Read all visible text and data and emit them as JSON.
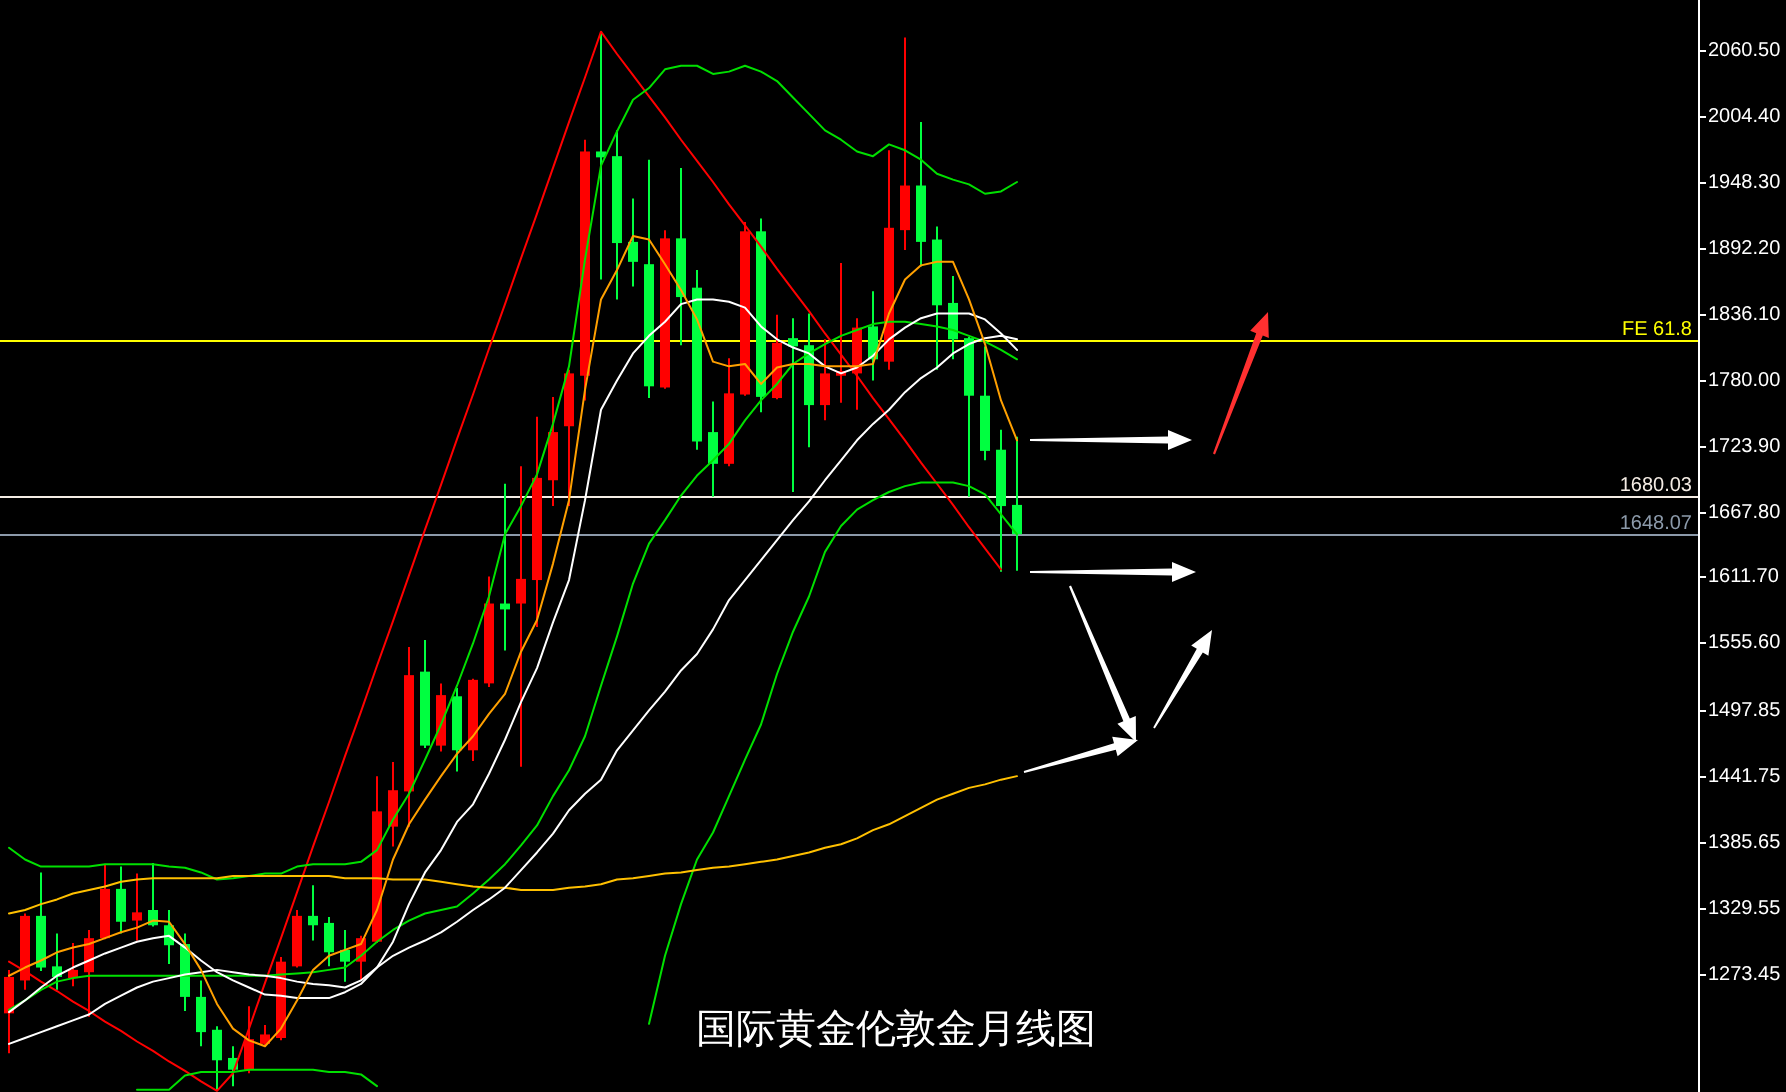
{
  "chart_data": {
    "type": "candlestick",
    "title": "国际黄金伦敦金月线图",
    "categories": [
      null,
      null,
      null,
      null,
      null,
      null,
      null,
      null,
      null,
      null,
      null,
      null,
      null,
      null,
      null,
      null,
      null,
      null,
      null,
      null,
      null,
      null,
      null,
      null,
      null,
      null,
      null,
      null,
      null,
      null,
      null,
      null,
      null,
      null,
      null,
      null,
      null,
      null,
      null,
      null,
      null,
      null,
      null,
      null,
      null,
      null,
      null,
      null,
      null,
      null,
      null,
      null,
      null,
      null,
      null,
      null,
      null,
      null,
      null,
      null,
      null,
      null,
      null,
      null
    ],
    "ohlc": [
      [
        1240,
        1277,
        1206,
        1271
      ],
      [
        1268,
        1325,
        1260,
        1323
      ],
      [
        1323,
        1360,
        1276,
        1279
      ],
      [
        1280,
        1308,
        1260,
        1271
      ],
      [
        1270,
        1300,
        1263,
        1277
      ],
      [
        1275,
        1311,
        1237,
        1304
      ],
      [
        1304,
        1367,
        1303,
        1346
      ],
      [
        1346,
        1365,
        1308,
        1318
      ],
      [
        1319,
        1359,
        1302,
        1326
      ],
      [
        1328,
        1368,
        1314,
        1315
      ],
      [
        1315,
        1328,
        1282,
        1298
      ],
      [
        1299,
        1308,
        1242,
        1254
      ],
      [
        1254,
        1268,
        1212,
        1224
      ],
      [
        1226,
        1229,
        1174,
        1200
      ],
      [
        1202,
        1212,
        1178,
        1192
      ],
      [
        1192,
        1246,
        1189,
        1218
      ],
      [
        1214,
        1230,
        1212,
        1222
      ],
      [
        1219,
        1288,
        1217,
        1284
      ],
      [
        1280,
        1328,
        1279,
        1323
      ],
      [
        1323,
        1349,
        1302,
        1315
      ],
      [
        1317,
        1322,
        1280,
        1292
      ],
      [
        1294,
        1311,
        1267,
        1284
      ],
      [
        1284,
        1306,
        1268,
        1304
      ],
      [
        1301,
        1442,
        1300,
        1412
      ],
      [
        1399,
        1454,
        1382,
        1430
      ],
      [
        1429,
        1552,
        1399,
        1528
      ],
      [
        1531,
        1558,
        1466,
        1468
      ],
      [
        1468,
        1521,
        1463,
        1511
      ],
      [
        1510,
        1517,
        1446,
        1464
      ],
      [
        1464,
        1525,
        1455,
        1524
      ],
      [
        1521,
        1612,
        1518,
        1589
      ],
      [
        1589,
        1691,
        1549,
        1584
      ],
      [
        1589,
        1706,
        1450,
        1610
      ],
      [
        1609,
        1748,
        1569,
        1696
      ],
      [
        1694,
        1765,
        1672,
        1735
      ],
      [
        1740,
        1788,
        1672,
        1785
      ],
      [
        1783,
        1984,
        1762,
        1974
      ],
      [
        1974,
        2076,
        1865,
        1969
      ],
      [
        1970,
        1992,
        1848,
        1896
      ],
      [
        1897,
        1934,
        1859,
        1880
      ],
      [
        1878,
        1967,
        1764,
        1774
      ],
      [
        1773,
        1907,
        1772,
        1900
      ],
      [
        1900,
        1960,
        1809,
        1850
      ],
      [
        1858,
        1873,
        1720,
        1727
      ],
      [
        1735,
        1761,
        1680,
        1708
      ],
      [
        1708,
        1798,
        1706,
        1768
      ],
      [
        1767,
        1914,
        1766,
        1906
      ],
      [
        1906,
        1917,
        1752,
        1765
      ],
      [
        1764,
        1835,
        1763,
        1811
      ],
      [
        1815,
        1832,
        1684,
        1808
      ],
      [
        1809,
        1836,
        1722,
        1758
      ],
      [
        1758,
        1814,
        1745,
        1785
      ],
      [
        1783,
        1879,
        1760,
        1787
      ],
      [
        1785,
        1832,
        1754,
        1824
      ],
      [
        1825,
        1855,
        1779,
        1797
      ],
      [
        1795,
        1975,
        1788,
        1909
      ],
      [
        1907,
        2071,
        1890,
        1945
      ],
      [
        1945,
        1999,
        1876,
        1897
      ],
      [
        1899,
        1910,
        1788,
        1843
      ],
      [
        1845,
        1868,
        1797,
        1814
      ],
      [
        1815,
        1816,
        1680,
        1766
      ],
      [
        1766,
        1808,
        1711,
        1719
      ],
      [
        1720,
        1737,
        1616,
        1672
      ],
      [
        1673,
        1731,
        1617,
        1648
      ]
    ],
    "colors": [
      "#ff0000",
      "#ff0000",
      "#00ff40",
      "#00ff40",
      "#ff0000",
      "#ff0000",
      "#ff0000",
      "#00ff40",
      "#ff0000",
      "#00ff40",
      "#00ff40",
      "#00ff40",
      "#00ff40",
      "#00ff40",
      "#00ff40",
      "#ff0000",
      "#ff0000",
      "#ff0000",
      "#ff0000",
      "#00ff40",
      "#00ff40",
      "#00ff40",
      "#ff0000",
      "#ff0000",
      "#ff0000",
      "#ff0000",
      "#00ff40",
      "#ff0000",
      "#00ff40",
      "#ff0000",
      "#ff0000",
      "#00ff40",
      "#ff0000",
      "#ff0000",
      "#ff0000",
      "#ff0000",
      "#ff0000",
      "#00ff40",
      "#00ff40",
      "#00ff40",
      "#00ff40",
      "#ff0000",
      "#00ff40",
      "#00ff40",
      "#00ff40",
      "#ff0000",
      "#ff0000",
      "#00ff40",
      "#ff0000",
      "#00ff40",
      "#00ff40",
      "#ff0000",
      "#ff0000",
      "#ff0000",
      "#00ff40",
      "#ff0000",
      "#ff0000",
      "#00ff40",
      "#00ff40",
      "#00ff40",
      "#00ff40",
      "#00ff40",
      "#00ff40",
      "#00ff40"
    ],
    "series": [
      {
        "type": "line",
        "color": "#ff0000",
        "values": [
          1284,
          1276,
          1267,
          1259,
          1250,
          1242,
          1233,
          1225,
          1216,
          1208,
          1199,
          1191,
          1182,
          1174,
          1189,
          1227,
          1266,
          1304,
          1343,
          1382,
          1420,
          1459,
          1497,
          1536,
          1574,
          1613,
          1652,
          1690,
          1729,
          1767,
          1806,
          1844,
          1883,
          1921,
          1960,
          1999,
          2037,
          2076,
          2057,
          2039,
          2021,
          2003,
          1984,
          1966,
          1948,
          1929,
          1911,
          1893,
          1874,
          1856,
          1838,
          1819,
          1801,
          1783,
          1764,
          1746,
          1728,
          1709,
          1691,
          1673,
          1654,
          1636,
          1618,
          null
        ]
      },
      {
        "type": "line",
        "color": "#00e000",
        "values": [
          1381,
          1371,
          1365,
          1365,
          1365,
          1365,
          1367,
          1367,
          1367,
          1367,
          1365,
          1364,
          1360,
          1354,
          1355,
          1357,
          1359,
          1359,
          1365,
          1367,
          1367,
          1367,
          1369,
          1379,
          1405,
          1427,
          1456,
          1486,
          1519,
          1555,
          1595,
          1648,
          1672,
          1699,
          1742,
          1791,
          1882,
          1962,
          1991,
          2018,
          2028,
          2044,
          2047,
          2047,
          2040,
          2042,
          2047,
          2042,
          2034,
          2020,
          2006,
          1992,
          1984,
          1974,
          1970,
          1980,
          1975,
          1967,
          1955,
          1950,
          1946,
          1938,
          1940,
          1948
        ]
      },
      {
        "type": "line",
        "color": "#00e000",
        "values": [
          1243,
          1251,
          1260,
          1267,
          1270,
          1272,
          1272,
          1272,
          1272,
          1272,
          1272,
          1272,
          1272,
          1272,
          1272,
          1272,
          1272,
          1273,
          1274,
          1275,
          1277,
          1279,
          1289,
          1301,
          1311,
          1319,
          1325,
          1328,
          1331,
          1342,
          1354,
          1367,
          1383,
          1400,
          1425,
          1447,
          1476,
          1519,
          1561,
          1606,
          1640,
          1660,
          1681,
          1698,
          1711,
          1725,
          1745,
          1762,
          1776,
          1793,
          1802,
          1810,
          1817,
          1822,
          1827,
          1829,
          1829,
          1827,
          1825,
          1822,
          1817,
          1812,
          1805,
          1797
        ]
      },
      {
        "type": "line",
        "color": "#00e000",
        "values": [
          null,
          null,
          null,
          null,
          null,
          null,
          null,
          null,
          1175,
          1175,
          1175,
          1187,
          1190,
          1190,
          1190,
          1192,
          1192,
          1192,
          1192,
          1192,
          1190,
          1190,
          1188,
          1178,
          null,
          null,
          null,
          null,
          null,
          null,
          null,
          null,
          null,
          null,
          null,
          null,
          null,
          null,
          null,
          null,
          1231,
          1289,
          1333,
          1371,
          1394,
          1425,
          1456,
          1486,
          1529,
          1565,
          1595,
          1633,
          1655,
          1669,
          1677,
          1684,
          1689,
          1692,
          1692,
          1692,
          1689,
          1682,
          1665,
          1648
        ]
      },
      {
        "type": "line",
        "color": "#ffc000",
        "values": [
          1325,
          1328,
          1333,
          1337,
          1342,
          1345,
          1348,
          1352,
          1354,
          1355,
          1355,
          1355,
          1355,
          1355,
          1357,
          1357,
          1357,
          1357,
          1357,
          1357,
          1357,
          1355,
          1355,
          1355,
          1354,
          1354,
          1354,
          1352,
          1350,
          1348,
          1347,
          1347,
          1345,
          1345,
          1345,
          1347,
          1348,
          1350,
          1354,
          1355,
          1357,
          1359,
          1360,
          1362,
          1364,
          1365,
          1367,
          1369,
          1371,
          1374,
          1377,
          1381,
          1384,
          1389,
          1396,
          1401,
          1408,
          1415,
          1422,
          1427,
          1432,
          1435,
          1439,
          1442
        ]
      },
      {
        "type": "line",
        "color": "#ffffff",
        "values": [
          1214,
          1219,
          1224,
          1229,
          1234,
          1239,
          1248,
          1255,
          1262,
          1267,
          1270,
          1273,
          1275,
          1277,
          1275,
          1273,
          1272,
          1270,
          1267,
          1265,
          1264,
          1262,
          1268,
          1279,
          1289,
          1296,
          1302,
          1309,
          1318,
          1328,
          1337,
          1347,
          1362,
          1377,
          1393,
          1413,
          1427,
          1439,
          1464,
          1481,
          1498,
          1514,
          1532,
          1546,
          1567,
          1592,
          1609,
          1626,
          1643,
          1660,
          1676,
          1694,
          1711,
          1728,
          1742,
          1754,
          1769,
          1781,
          1790,
          1802,
          1810,
          1815,
          1817,
          1814
        ]
      },
      {
        "type": "line",
        "color": "#ffffff",
        "values": [
          1241,
          1251,
          1262,
          1272,
          1279,
          1285,
          1291,
          1296,
          1301,
          1304,
          1306,
          1296,
          1285,
          1275,
          1268,
          1262,
          1256,
          1255,
          1253,
          1253,
          1253,
          1258,
          1265,
          1279,
          1301,
          1333,
          1360,
          1379,
          1403,
          1418,
          1444,
          1473,
          1505,
          1534,
          1573,
          1609,
          1677,
          1754,
          1779,
          1802,
          1817,
          1829,
          1844,
          1848,
          1848,
          1846,
          1841,
          1825,
          1814,
          1807,
          1802,
          1791,
          1785,
          1790,
          1800,
          1814,
          1824,
          1832,
          1836,
          1836,
          1836,
          1831,
          1819,
          1805
        ]
      },
      {
        "type": "line",
        "color": "#ffa000",
        "values": [
          1272,
          1279,
          1285,
          1292,
          1296,
          1299,
          1304,
          1309,
          1313,
          1319,
          1318,
          1299,
          1277,
          1248,
          1227,
          1217,
          1212,
          1227,
          1251,
          1277,
          1289,
          1294,
          1299,
          1328,
          1371,
          1401,
          1422,
          1442,
          1461,
          1476,
          1495,
          1512,
          1548,
          1575,
          1623,
          1677,
          1771,
          1848,
          1873,
          1902,
          1899,
          1878,
          1856,
          1831,
          1795,
          1791,
          1793,
          1776,
          1790,
          1793,
          1793,
          1791,
          1791,
          1791,
          1793,
          1836,
          1865,
          1877,
          1880,
          1880,
          1848,
          1810,
          1762,
          1728
        ]
      }
    ],
    "ylim": [
      1173,
      2103
    ],
    "yticks": [
      {
        "value": 2060.5,
        "label": "2060.50"
      },
      {
        "value": 2004.4,
        "label": "2004.40"
      },
      {
        "value": 1948.3,
        "label": "1948.30"
      },
      {
        "value": 1892.2,
        "label": "1892.20"
      },
      {
        "value": 1836.1,
        "label": "1836.10"
      },
      {
        "value": 1780,
        "label": "1780.00"
      },
      {
        "value": 1723.9,
        "label": "1723.90"
      },
      {
        "value": 1667.8,
        "label": "1667.80"
      },
      {
        "value": 1611.7,
        "label": "1611.70"
      },
      {
        "value": 1555.6,
        "label": "1555.60"
      },
      {
        "value": 1497.85,
        "label": "1497.85"
      },
      {
        "value": 1441.75,
        "label": "1441.75"
      },
      {
        "value": 1385.65,
        "label": "1385.65"
      },
      {
        "value": 1329.55,
        "label": "1329.55"
      },
      {
        "value": 1273.45,
        "label": "1273.45"
      }
    ],
    "ref_lines": [
      {
        "axis": "y",
        "value": 1813,
        "label": "FE 61.8",
        "color": "#ffff00"
      },
      {
        "axis": "y",
        "value": 1680.03,
        "label": "1680.03",
        "color": "#f4ece4"
      },
      {
        "axis": "y",
        "value": 1648.07,
        "label": "1648.07",
        "color": "#8c9aaa"
      }
    ],
    "tick_labels": "y"
  }
}
